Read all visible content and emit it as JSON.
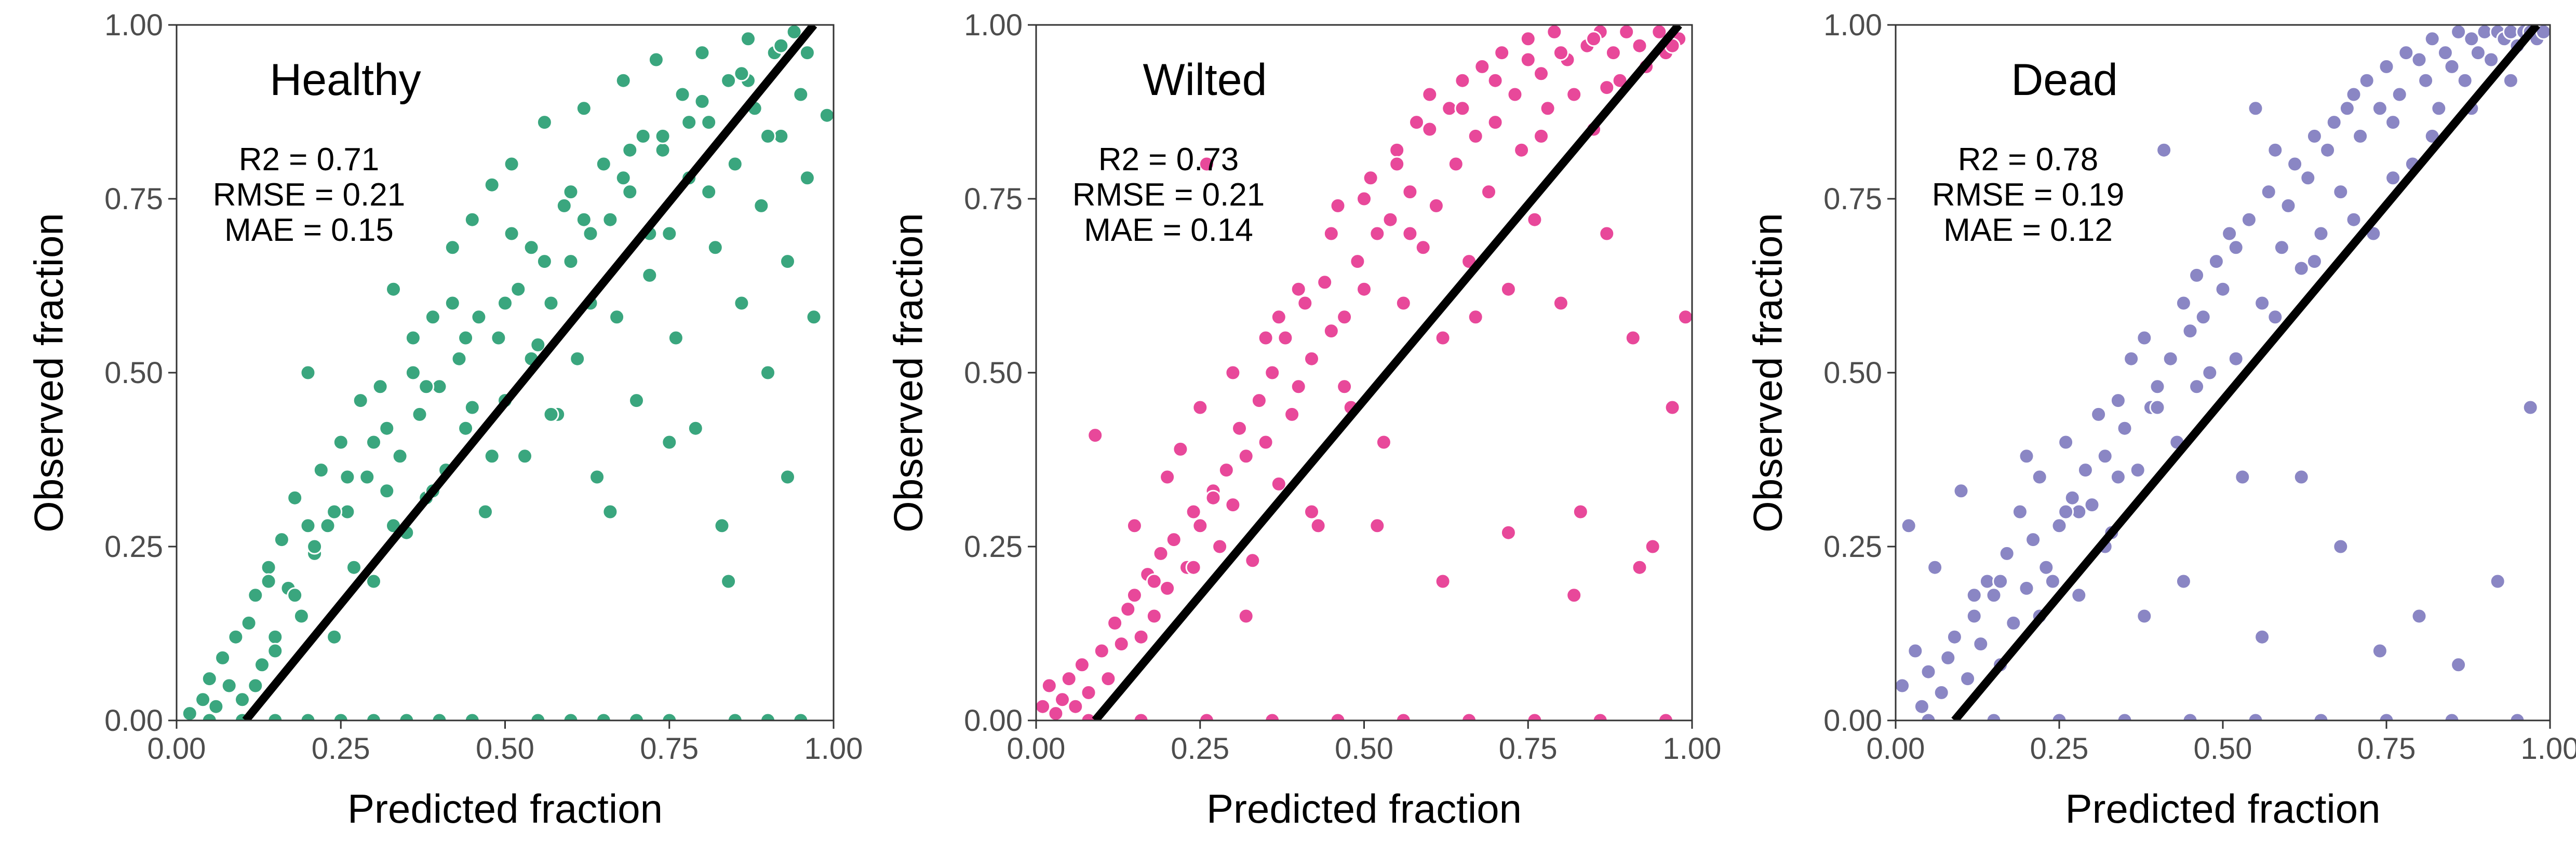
{
  "chart_data": [
    {
      "type": "scatter",
      "title": "Healthy",
      "xlabel": "Predicted fraction",
      "ylabel": "Observed fraction",
      "xlim": [
        0,
        1
      ],
      "ylim": [
        0,
        1
      ],
      "x_ticks": [
        "0.00",
        "0.25",
        "0.50",
        "0.75",
        "1.00"
      ],
      "y_ticks": [
        "0.00",
        "0.25",
        "0.50",
        "0.75",
        "1.00"
      ],
      "x_tick_values": [
        0,
        0.25,
        0.5,
        0.75,
        1
      ],
      "y_tick_values": [
        0,
        0.25,
        0.5,
        0.75,
        1
      ],
      "grid": false,
      "point_color": "#3aa67e",
      "line_color": "#000000",
      "fit_line": {
        "x": [
          0.105,
          0.97
        ],
        "y": [
          0.0,
          1.0
        ]
      },
      "stats": [
        "R2 = 0.71",
        "RMSE = 0.21",
        "MAE = 0.15"
      ],
      "series": [
        {
          "x": [
            0.02,
            0.04,
            0.05,
            0.06,
            0.07,
            0.08,
            0.09,
            0.1,
            0.11,
            0.12,
            0.13,
            0.14,
            0.15,
            0.16,
            0.17,
            0.18,
            0.19,
            0.2,
            0.21,
            0.22,
            0.23,
            0.24,
            0.25,
            0.26,
            0.27,
            0.28,
            0.29,
            0.3,
            0.31,
            0.32,
            0.33,
            0.34,
            0.35,
            0.36,
            0.37,
            0.38,
            0.39,
            0.4,
            0.41,
            0.42,
            0.43,
            0.44,
            0.45,
            0.46,
            0.47,
            0.48,
            0.49,
            0.5,
            0.51,
            0.52,
            0.53,
            0.54,
            0.55,
            0.56,
            0.57,
            0.58,
            0.59,
            0.6,
            0.61,
            0.62,
            0.63,
            0.64,
            0.65,
            0.66,
            0.67,
            0.68,
            0.69,
            0.7,
            0.71,
            0.72,
            0.73,
            0.74,
            0.75,
            0.76,
            0.77,
            0.78,
            0.79,
            0.8,
            0.81,
            0.82,
            0.83,
            0.84,
            0.85,
            0.86,
            0.87,
            0.88,
            0.89,
            0.9,
            0.91,
            0.92,
            0.93,
            0.94,
            0.95,
            0.96,
            0.97,
            0.99,
            0.12,
            0.15,
            0.18,
            0.21,
            0.24,
            0.27,
            0.3,
            0.33,
            0.36,
            0.39,
            0.42,
            0.45,
            0.48,
            0.51,
            0.54,
            0.57,
            0.6,
            0.63,
            0.66,
            0.69,
            0.72,
            0.75,
            0.78,
            0.81,
            0.84,
            0.87,
            0.9,
            0.93,
            0.96,
            0.14,
            0.2,
            0.26,
            0.32,
            0.38,
            0.44,
            0.5,
            0.56,
            0.62,
            0.68,
            0.74,
            0.8,
            0.86,
            0.92,
            0.05,
            0.1,
            0.15,
            0.2,
            0.25,
            0.3,
            0.35,
            0.4,
            0.45,
            0.55,
            0.6,
            0.65,
            0.7,
            0.75,
            0.85,
            0.9,
            0.95
          ],
          "y": [
            0.01,
            0.03,
            0.06,
            0.02,
            0.09,
            0.05,
            0.12,
            0.03,
            0.14,
            0.18,
            0.08,
            0.22,
            0.12,
            0.26,
            0.19,
            0.32,
            0.15,
            0.5,
            0.24,
            0.36,
            0.28,
            0.12,
            0.4,
            0.3,
            0.22,
            0.46,
            0.35,
            0.2,
            0.48,
            0.33,
            0.62,
            0.38,
            0.27,
            0.55,
            0.44,
            0.32,
            0.58,
            0.48,
            0.36,
            0.68,
            0.52,
            0.42,
            0.72,
            0.58,
            0.3,
            0.77,
            0.55,
            0.46,
            0.8,
            0.62,
            0.38,
            0.68,
            0.54,
            0.86,
            0.6,
            0.44,
            0.74,
            0.66,
            0.52,
            0.88,
            0.7,
            0.35,
            0.8,
            0.72,
            0.58,
            0.92,
            0.76,
            0.46,
            0.84,
            0.64,
            0.95,
            0.82,
            0.7,
            0.55,
            0.9,
            0.78,
            0.42,
            0.96,
            0.86,
            0.68,
            0.28,
            0.92,
            0.8,
            0.6,
            0.98,
            0.88,
            0.74,
            0.5,
            0.96,
            0.84,
            0.66,
            0.99,
            0.9,
            0.78,
            0.58,
            0.87,
            0.05,
            0.1,
            0.18,
            0.25,
            0.3,
            0.22,
            0.4,
            0.28,
            0.5,
            0.33,
            0.6,
            0.45,
            0.38,
            0.7,
            0.52,
            0.44,
            0.76,
            0.6,
            0.3,
            0.82,
            0.7,
            0.4,
            0.86,
            0.76,
            0.2,
            0.92,
            0.84,
            0.35,
            0.96,
            0.2,
            0.28,
            0.35,
            0.42,
            0.48,
            0.55,
            0.6,
            0.66,
            0.72,
            0.78,
            0.84,
            0.89,
            0.93,
            0.97,
            0.0,
            0.0,
            0.0,
            0.0,
            0.0,
            0.0,
            0.0,
            0.0,
            0.0,
            0.0,
            0.0,
            0.0,
            0.0,
            0.0,
            0.0,
            0.0,
            0.0
          ]
        }
      ]
    },
    {
      "type": "scatter",
      "title": "Wilted",
      "xlabel": "Predicted fraction",
      "ylabel": "Observed fraction",
      "xlim": [
        0,
        1
      ],
      "ylim": [
        0,
        1
      ],
      "x_ticks": [
        "0.00",
        "0.25",
        "0.50",
        "0.75",
        "1.00"
      ],
      "y_ticks": [
        "0.00",
        "0.25",
        "0.50",
        "0.75",
        "1.00"
      ],
      "x_tick_values": [
        0,
        0.25,
        0.5,
        0.75,
        1
      ],
      "y_tick_values": [
        0,
        0.25,
        0.5,
        0.75,
        1
      ],
      "grid": false,
      "point_color": "#e8489a",
      "line_color": "#000000",
      "fit_line": {
        "x": [
          0.09,
          0.98
        ],
        "y": [
          0.0,
          1.0
        ]
      },
      "stats": [
        "R2 = 0.73",
        "RMSE = 0.21",
        "MAE = 0.14"
      ],
      "series": [
        {
          "x": [
            0.01,
            0.02,
            0.03,
            0.04,
            0.05,
            0.06,
            0.07,
            0.08,
            0.09,
            0.1,
            0.11,
            0.12,
            0.13,
            0.14,
            0.15,
            0.16,
            0.17,
            0.18,
            0.19,
            0.2,
            0.21,
            0.22,
            0.23,
            0.24,
            0.25,
            0.26,
            0.27,
            0.28,
            0.29,
            0.3,
            0.31,
            0.32,
            0.33,
            0.34,
            0.35,
            0.36,
            0.37,
            0.38,
            0.39,
            0.4,
            0.41,
            0.42,
            0.43,
            0.44,
            0.45,
            0.46,
            0.47,
            0.48,
            0.49,
            0.5,
            0.51,
            0.52,
            0.53,
            0.54,
            0.55,
            0.56,
            0.57,
            0.58,
            0.59,
            0.6,
            0.61,
            0.62,
            0.63,
            0.64,
            0.65,
            0.66,
            0.67,
            0.68,
            0.69,
            0.7,
            0.71,
            0.72,
            0.73,
            0.74,
            0.75,
            0.76,
            0.77,
            0.78,
            0.79,
            0.8,
            0.81,
            0.82,
            0.83,
            0.84,
            0.85,
            0.86,
            0.87,
            0.88,
            0.89,
            0.9,
            0.91,
            0.92,
            0.93,
            0.94,
            0.95,
            0.96,
            0.97,
            0.98,
            0.99,
            0.15,
            0.2,
            0.25,
            0.3,
            0.35,
            0.4,
            0.45,
            0.5,
            0.55,
            0.6,
            0.65,
            0.7,
            0.75,
            0.8,
            0.85,
            0.9,
            0.95,
            0.18,
            0.24,
            0.32,
            0.42,
            0.52,
            0.62,
            0.72,
            0.82,
            0.92,
            0.27,
            0.37,
            0.47,
            0.57,
            0.67,
            0.77,
            0.87,
            0.97,
            0.08,
            0.16,
            0.26,
            0.36,
            0.46,
            0.56,
            0.66,
            0.76,
            0.86,
            0.96
          ],
          "y": [
            0.02,
            0.05,
            0.01,
            0.03,
            0.06,
            0.02,
            0.08,
            0.04,
            0.41,
            0.1,
            0.06,
            0.14,
            0.11,
            0.16,
            0.18,
            0.12,
            0.21,
            0.15,
            0.24,
            0.19,
            0.26,
            0.39,
            0.22,
            0.3,
            0.28,
            0.8,
            0.33,
            0.25,
            0.36,
            0.31,
            0.42,
            0.38,
            0.23,
            0.46,
            0.4,
            0.5,
            0.34,
            0.55,
            0.44,
            0.48,
            0.6,
            0.52,
            0.28,
            0.63,
            0.56,
            0.74,
            0.58,
            0.45,
            0.66,
            0.62,
            0.78,
            0.7,
            0.4,
            0.72,
            0.82,
            0.6,
            0.76,
            0.86,
            0.68,
            0.9,
            0.74,
            0.55,
            0.88,
            0.8,
            0.92,
            0.66,
            0.84,
            0.94,
            0.76,
            0.86,
            0.96,
            0.62,
            0.9,
            0.82,
            0.98,
            0.72,
            0.93,
            0.88,
            0.99,
            0.6,
            0.95,
            0.9,
            0.3,
            0.97,
            0.85,
            0.99,
            0.7,
            0.96,
            0.92,
            0.99,
            0.55,
            0.97,
            0.94,
            0.25,
            0.99,
            0.96,
            0.45,
            0.98,
            0.58,
            0.28,
            0.35,
            0.45,
            0.5,
            0.55,
            0.62,
            0.7,
            0.75,
            0.8,
            0.85,
            0.88,
            0.92,
            0.95,
            0.96,
            0.98,
            0.99,
            0.99,
            0.2,
            0.22,
            0.15,
            0.3,
            0.28,
            0.2,
            0.27,
            0.18,
            0.22,
            0.32,
            0.58,
            0.48,
            0.7,
            0.58,
            0.84,
            0.91,
            0.97,
            0.0,
            0.0,
            0.0,
            0.0,
            0.0,
            0.0,
            0.0,
            0.0,
            0.0,
            0.0
          ]
        }
      ]
    },
    {
      "type": "scatter",
      "title": "Dead",
      "xlabel": "Predicted fraction",
      "ylabel": "Observed fraction",
      "xlim": [
        0,
        1
      ],
      "ylim": [
        0,
        1
      ],
      "x_ticks": [
        "0.00",
        "0.25",
        "0.50",
        "0.75",
        "1.00"
      ],
      "y_ticks": [
        "0.00",
        "0.25",
        "0.50",
        "0.75",
        "1.00"
      ],
      "x_tick_values": [
        0,
        0.25,
        0.5,
        0.75,
        1
      ],
      "y_tick_values": [
        0,
        0.25,
        0.5,
        0.75,
        1
      ],
      "grid": false,
      "point_color": "#8a86c4",
      "line_color": "#000000",
      "fit_line": {
        "x": [
          0.09,
          0.98
        ],
        "y": [
          0.0,
          1.0
        ]
      },
      "stats": [
        "R2 = 0.78",
        "RMSE = 0.19",
        "MAE = 0.12"
      ],
      "series": [
        {
          "x": [
            0.01,
            0.02,
            0.03,
            0.04,
            0.05,
            0.06,
            0.07,
            0.08,
            0.09,
            0.1,
            0.11,
            0.12,
            0.13,
            0.14,
            0.15,
            0.16,
            0.17,
            0.18,
            0.19,
            0.2,
            0.21,
            0.22,
            0.23,
            0.24,
            0.25,
            0.26,
            0.27,
            0.28,
            0.29,
            0.3,
            0.31,
            0.32,
            0.33,
            0.34,
            0.35,
            0.36,
            0.37,
            0.38,
            0.39,
            0.4,
            0.41,
            0.42,
            0.43,
            0.44,
            0.45,
            0.46,
            0.47,
            0.48,
            0.49,
            0.5,
            0.51,
            0.52,
            0.53,
            0.54,
            0.55,
            0.56,
            0.57,
            0.58,
            0.59,
            0.6,
            0.61,
            0.62,
            0.63,
            0.64,
            0.65,
            0.66,
            0.67,
            0.68,
            0.69,
            0.7,
            0.71,
            0.72,
            0.73,
            0.74,
            0.75,
            0.76,
            0.77,
            0.78,
            0.79,
            0.8,
            0.81,
            0.82,
            0.83,
            0.84,
            0.85,
            0.86,
            0.87,
            0.88,
            0.89,
            0.9,
            0.91,
            0.92,
            0.93,
            0.94,
            0.95,
            0.96,
            0.97,
            0.98,
            0.99,
            0.12,
            0.16,
            0.22,
            0.28,
            0.34,
            0.4,
            0.46,
            0.52,
            0.58,
            0.64,
            0.7,
            0.76,
            0.82,
            0.88,
            0.94,
            0.2,
            0.26,
            0.32,
            0.38,
            0.44,
            0.56,
            0.62,
            0.68,
            0.74,
            0.8,
            0.86,
            0.92,
            0.97,
            0.05,
            0.15,
            0.25,
            0.35,
            0.45,
            0.55,
            0.65,
            0.75,
            0.85,
            0.95
          ],
          "y": [
            0.05,
            0.28,
            0.1,
            0.02,
            0.07,
            0.22,
            0.04,
            0.09,
            0.12,
            0.33,
            0.06,
            0.15,
            0.11,
            0.2,
            0.18,
            0.08,
            0.24,
            0.14,
            0.3,
            0.19,
            0.26,
            0.35,
            0.22,
            0.2,
            0.28,
            0.4,
            0.32,
            0.18,
            0.36,
            0.31,
            0.44,
            0.38,
            0.27,
            0.46,
            0.42,
            0.52,
            0.36,
            0.55,
            0.45,
            0.48,
            0.82,
            0.52,
            0.4,
            0.6,
            0.56,
            0.64,
            0.58,
            0.5,
            0.66,
            0.62,
            0.7,
            0.68,
            0.35,
            0.72,
            0.88,
            0.6,
            0.76,
            0.82,
            0.68,
            0.74,
            0.8,
            0.65,
            0.78,
            0.84,
            0.7,
            0.82,
            0.86,
            0.76,
            0.88,
            0.9,
            0.84,
            0.92,
            0.7,
            0.88,
            0.94,
            0.86,
            0.9,
            0.96,
            0.8,
            0.95,
            0.92,
            0.98,
            0.88,
            0.96,
            0.94,
            0.99,
            0.92,
            0.98,
            0.96,
            0.99,
            0.95,
            0.99,
            0.98,
            0.99,
            0.97,
            0.99,
            0.99,
            0.98,
            0.99,
            0.18,
            0.2,
            0.15,
            0.3,
            0.35,
            0.45,
            0.48,
            0.52,
            0.58,
            0.66,
            0.72,
            0.78,
            0.84,
            0.88,
            0.92,
            0.38,
            0.3,
            0.25,
            0.15,
            0.2,
            0.12,
            0.35,
            0.25,
            0.1,
            0.15,
            0.08,
            0.2,
            0.45,
            0.0,
            0.0,
            0.0,
            0.0,
            0.0,
            0.0,
            0.0,
            0.0,
            0.0,
            0.0
          ]
        }
      ]
    }
  ]
}
